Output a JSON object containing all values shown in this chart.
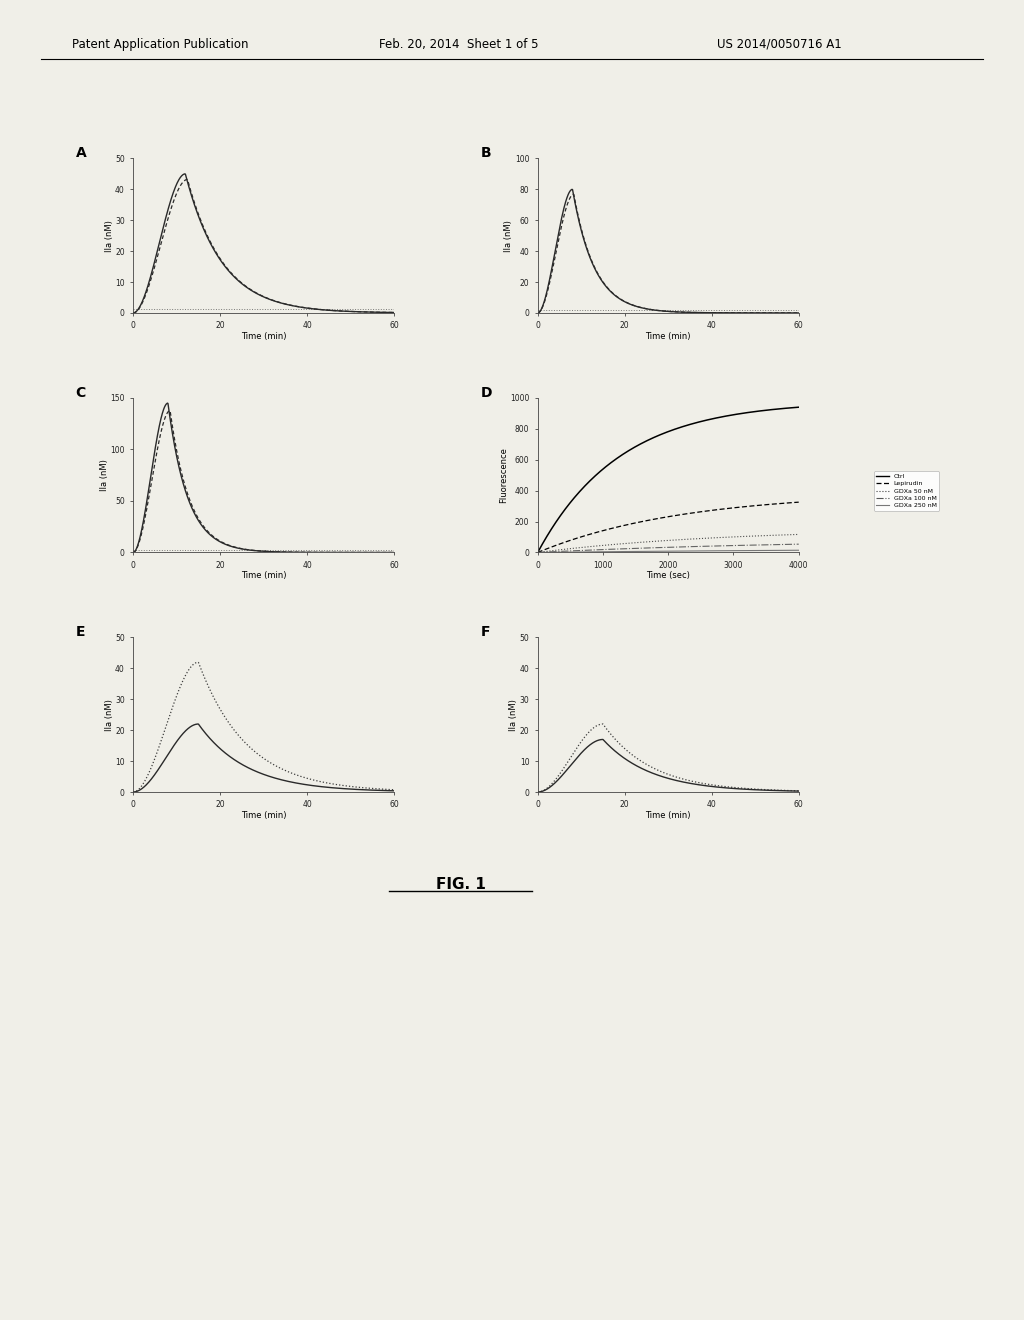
{
  "title": "FIG. 1",
  "header_left": "Patent Application Publication",
  "header_center": "Feb. 20, 2014  Sheet 1 of 5",
  "header_right": "US 2014/0050716 A1",
  "background_color": "#f0efe8",
  "panel_A": {
    "label": "A",
    "ylabel": "IIa (nM)",
    "xlabel": "Time (min)",
    "xlim": [
      0,
      60
    ],
    "ylim": [
      0,
      50
    ],
    "yticks": [
      0,
      10,
      20,
      30,
      40,
      50
    ],
    "xticks": [
      0,
      20,
      40,
      60
    ],
    "curve1_peak": 45,
    "curve1_peak_t": 12,
    "rise_k": 0.6,
    "fall_k": 0.12
  },
  "panel_B": {
    "label": "B",
    "ylabel": "IIa (nM)",
    "xlabel": "Time (min)",
    "xlim": [
      0,
      60
    ],
    "ylim": [
      0,
      100
    ],
    "yticks": [
      0,
      20,
      40,
      60,
      80,
      100
    ],
    "xticks": [
      0,
      20,
      40,
      60
    ],
    "curve1_peak": 80,
    "curve1_peak_t": 8,
    "rise_k": 1.0,
    "fall_k": 0.2
  },
  "panel_C": {
    "label": "C",
    "ylabel": "IIa (nM)",
    "xlabel": "Time (min)",
    "xlim": [
      0,
      60
    ],
    "ylim": [
      0,
      150
    ],
    "yticks": [
      0,
      50,
      100,
      150
    ],
    "xticks": [
      0,
      20,
      40,
      60
    ],
    "curve1_peak": 145,
    "curve1_peak_t": 8,
    "rise_k": 1.2,
    "fall_k": 0.22
  },
  "panel_D": {
    "label": "D",
    "ylabel": "Fluorescence",
    "xlabel": "Time (sec)",
    "xlim": [
      0,
      4000
    ],
    "ylim": [
      0,
      1000
    ],
    "yticks": [
      0,
      200,
      400,
      600,
      800,
      1000
    ],
    "xticks": [
      0,
      1000,
      2000,
      3000,
      4000
    ],
    "legend": [
      "Ctrl",
      "Lepirudin",
      "GDXa 50 nM",
      "GDXa 100 nM",
      "GDXa 250 nM"
    ],
    "ctrl_plateau": 980,
    "ctrl_k": 0.0008,
    "lep_plateau": 390,
    "lep_k": 0.00045,
    "g50_plateau": 155,
    "g50_k": 0.00035,
    "g100_plateau": 85,
    "g100_k": 0.00025,
    "g250_plateau": 28,
    "g250_k": 0.00018
  },
  "panel_E": {
    "label": "E",
    "ylabel": "IIa (nM)",
    "xlabel": "Time (min)",
    "xlim": [
      0,
      60
    ],
    "ylim": [
      0,
      50
    ],
    "yticks": [
      0,
      10,
      20,
      30,
      40,
      50
    ],
    "xticks": [
      0,
      20,
      40,
      60
    ],
    "curve1_peak": 42,
    "curve1_peak_t": 15,
    "curve2_peak": 22,
    "curve2_peak_t": 15,
    "rise_k": 0.4,
    "fall_k": 0.09
  },
  "panel_F": {
    "label": "F",
    "ylabel": "IIa (nM)",
    "xlabel": "Time (min)",
    "xlim": [
      0,
      60
    ],
    "ylim": [
      0,
      50
    ],
    "yticks": [
      0,
      10,
      20,
      30,
      40,
      50
    ],
    "xticks": [
      0,
      20,
      40,
      60
    ],
    "curve1_peak": 22,
    "curve1_peak_t": 15,
    "curve2_peak": 17,
    "curve2_peak_t": 15,
    "rise_k": 0.4,
    "fall_k": 0.09
  }
}
